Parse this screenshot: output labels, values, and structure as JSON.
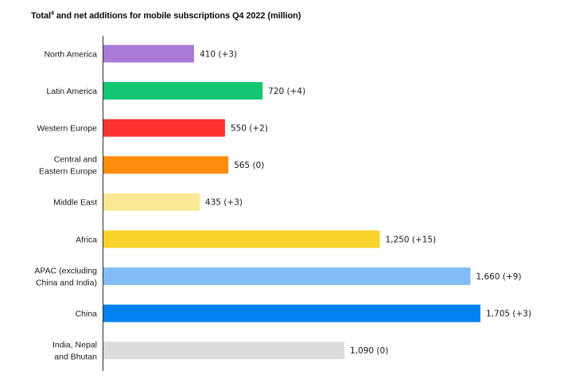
{
  "chart_data": {
    "type": "bar",
    "orientation": "horizontal",
    "title_main": "Total",
    "title_footnote": "4",
    "title_rest": " and net additions for mobile subscriptions Q4 2022 (million)",
    "categories": [
      "North America",
      "Latin America",
      "Western Europe",
      "Central and Eastern Europe",
      "Middle East",
      "Africa",
      "APAC (excluding China and India)",
      "China",
      "India, Nepal and Bhutan"
    ],
    "category_lines": [
      [
        "North America"
      ],
      [
        "Latin America"
      ],
      [
        "Western Europe"
      ],
      [
        "Central and",
        "Eastern Europe"
      ],
      [
        "Middle East"
      ],
      [
        "Africa"
      ],
      [
        "APAC (excluding",
        "China and India)"
      ],
      [
        "China"
      ],
      [
        "India, Nepal",
        "and Bhutan"
      ]
    ],
    "values": [
      410,
      720,
      550,
      565,
      435,
      1250,
      1660,
      1705,
      1090
    ],
    "data_labels": [
      "410 (+3)",
      "720 (+4)",
      "550 (+2)",
      "565 (0)",
      "435 (+3)",
      "1,250 (+15)",
      "1,660 (+9)",
      "1,705 (+3)",
      "1,090 (0)"
    ],
    "colors": [
      "#A97BD6",
      "#13C672",
      "#FF3232",
      "#FF8C0A",
      "#FAE896",
      "#FAD22D",
      "#82BEF5",
      "#0082F0",
      "#DCDCDC"
    ],
    "xlim": [
      0,
      1705
    ],
    "grid": false,
    "legend": "none"
  }
}
